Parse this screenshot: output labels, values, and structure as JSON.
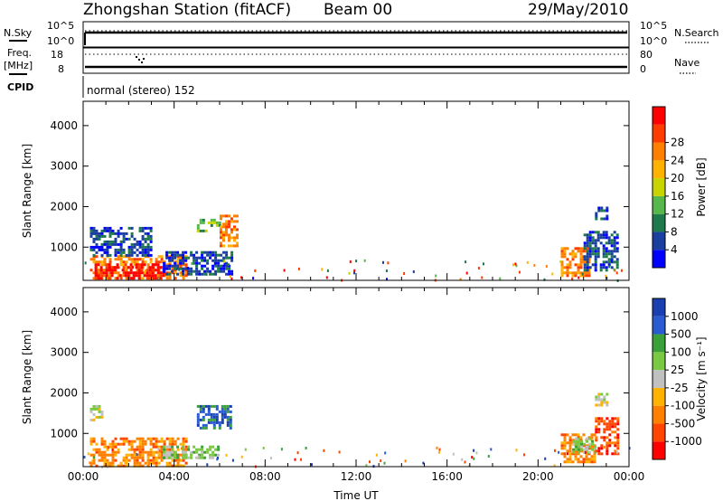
{
  "header": {
    "title": "Zhongshan Station (fitACF)",
    "beam": "Beam 00",
    "date": "29/May/2010"
  },
  "top_panel": {
    "left_label": "N.Sky",
    "left_ticks": [
      "10^5",
      "10^0"
    ],
    "right_ticks": [
      "10^5",
      "10^0"
    ],
    "right_label": "N.Search"
  },
  "freq_panel": {
    "left_label_1": "Freq.",
    "left_label_2": "[MHz]",
    "left_ticks": [
      "18",
      "8"
    ],
    "right_ticks": [
      "80",
      "0"
    ],
    "right_label": "Nave"
  },
  "cpid": {
    "label": "CPID",
    "text": "normal (stereo) 152"
  },
  "colors": {
    "power": [
      "#0000ff",
      "#1a3f9e",
      "#1e7a4a",
      "#56b84a",
      "#c8d400",
      "#ffb300",
      "#ff7f00",
      "#ff3c00",
      "#ff0000"
    ],
    "velocity": [
      "#ff0000",
      "#ff4500",
      "#ff8000",
      "#ffb300",
      "#c0c0c0",
      "#7ac943",
      "#3aa13a",
      "#2a5bd0",
      "#1a3fb0"
    ]
  },
  "chart_data": [
    {
      "type": "heatmap",
      "title": "",
      "xlabel": "",
      "ylabel": "Slant Range [km]",
      "x_ticks": [
        "00:00",
        "04:00",
        "08:00",
        "12:00",
        "16:00",
        "20:00",
        "00:00"
      ],
      "y_ticks": [
        "1000",
        "2000",
        "3000",
        "4000"
      ],
      "ylim": [
        180,
        4600
      ],
      "xlim_hours": [
        0,
        24
      ],
      "colorbar": {
        "label": "Power [dB]",
        "ticks": [
          "4",
          "8",
          "12",
          "16",
          "20",
          "24",
          "28"
        ]
      },
      "regions": [
        {
          "x": [
            0.3,
            4.5
          ],
          "y": [
            200,
            800
          ],
          "level": 6
        },
        {
          "x": [
            0.5,
            3.5
          ],
          "y": [
            200,
            600
          ],
          "level": 8
        },
        {
          "x": [
            3.5,
            6.5
          ],
          "y": [
            300,
            900
          ],
          "level": 1
        },
        {
          "x": [
            0.3,
            3.0
          ],
          "y": [
            800,
            1500
          ],
          "level": 1
        },
        {
          "x": [
            5.0,
            6.0
          ],
          "y": [
            1400,
            1700
          ],
          "level": 3
        },
        {
          "x": [
            6.0,
            6.8
          ],
          "y": [
            1000,
            1800
          ],
          "level": 6
        },
        {
          "x": [
            21.0,
            22.2
          ],
          "y": [
            300,
            1000
          ],
          "level": 6
        },
        {
          "x": [
            22.0,
            23.5
          ],
          "y": [
            400,
            1400
          ],
          "level": 1
        },
        {
          "x": [
            22.5,
            23.0
          ],
          "y": [
            1700,
            2000
          ],
          "level": 1
        }
      ]
    },
    {
      "type": "heatmap",
      "title": "",
      "xlabel": "Time UT",
      "ylabel": "Slant Range [km]",
      "x_ticks": [
        "00:00",
        "04:00",
        "08:00",
        "12:00",
        "16:00",
        "20:00",
        "00:00"
      ],
      "y_ticks": [
        "1000",
        "2000",
        "3000",
        "4000"
      ],
      "ylim": [
        180,
        4600
      ],
      "xlim_hours": [
        0,
        24
      ],
      "colorbar": {
        "label": "Velocity [m s⁻¹]",
        "ticks": [
          "1000",
          "500",
          "100",
          "25",
          "-25",
          "-100",
          "-500",
          "-1000"
        ]
      },
      "regions": [
        {
          "x": [
            0.3,
            4.5
          ],
          "y": [
            200,
            900
          ],
          "level": 2
        },
        {
          "x": [
            3.5,
            6.0
          ],
          "y": [
            400,
            700
          ],
          "level": 5
        },
        {
          "x": [
            5.0,
            6.5
          ],
          "y": [
            1100,
            1700
          ],
          "level": 7
        },
        {
          "x": [
            0.3,
            0.8
          ],
          "y": [
            1300,
            1700
          ],
          "level": 4
        },
        {
          "x": [
            21.0,
            22.5
          ],
          "y": [
            300,
            1000
          ],
          "level": 2
        },
        {
          "x": [
            21.5,
            22.5
          ],
          "y": [
            500,
            900
          ],
          "level": 5
        },
        {
          "x": [
            22.5,
            23.5
          ],
          "y": [
            500,
            1400
          ],
          "level": 1
        },
        {
          "x": [
            22.5,
            23.0
          ],
          "y": [
            1700,
            2000
          ],
          "level": 4
        }
      ]
    }
  ]
}
